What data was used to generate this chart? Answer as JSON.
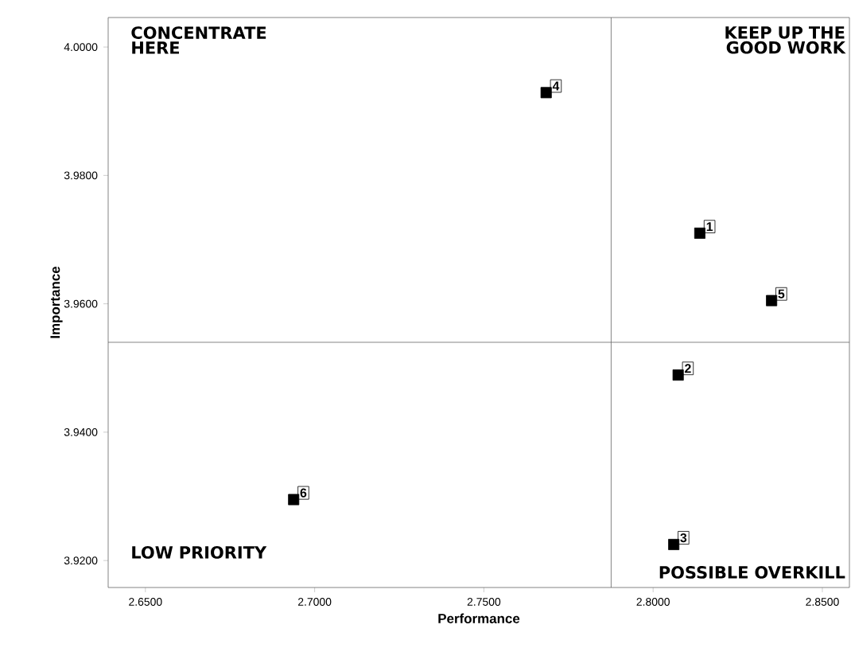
{
  "chart_data": {
    "type": "scatter",
    "xlabel": "Performance",
    "ylabel": "Importance",
    "x": [
      2.8138,
      2.8074,
      2.8061,
      2.7684,
      2.835,
      2.6938
    ],
    "values": [
      3.971,
      3.9489,
      3.9225,
      3.9929,
      3.9605,
      3.9295
    ],
    "color": "#000000",
    "marker": "square",
    "xlim": [
      2.639,
      2.858
    ],
    "ylim": [
      3.9158,
      4.0046
    ],
    "xticks": [
      {
        "value": 2.65,
        "label": "2.6500"
      },
      {
        "value": 2.7,
        "label": "2.7000"
      },
      {
        "value": 2.75,
        "label": "2.7500"
      },
      {
        "value": 2.8,
        "label": "2.8000"
      },
      {
        "value": 2.85,
        "label": "2.8500"
      }
    ],
    "yticks": [
      {
        "value": 3.92,
        "label": "3.9200"
      },
      {
        "value": 3.94,
        "label": "3.9400"
      },
      {
        "value": 3.96,
        "label": "3.9600"
      },
      {
        "value": 3.98,
        "label": "3.9800"
      },
      {
        "value": 4.0,
        "label": "4.0000"
      }
    ],
    "ref_lines": [
      {
        "axis": "x",
        "value": 2.7876
      },
      {
        "axis": "y",
        "value": 3.954
      }
    ],
    "annotations": [
      "CONCENTRATE HERE",
      "KEEP UP THE GOOD WORK",
      "LOW PRIORITY",
      "POSSIBLE OVERKILL",
      {
        "text": "1",
        "x": 2.8138,
        "y": 3.971
      },
      {
        "text": "2",
        "x": 2.8074,
        "y": 3.9489
      },
      {
        "text": "3",
        "x": 2.8061,
        "y": 3.9225
      },
      {
        "text": "4",
        "x": 2.7684,
        "y": 3.9929
      },
      {
        "text": "5",
        "x": 2.835,
        "y": 3.9605
      },
      {
        "text": "6",
        "x": 2.6938,
        "y": 3.9295
      }
    ]
  }
}
